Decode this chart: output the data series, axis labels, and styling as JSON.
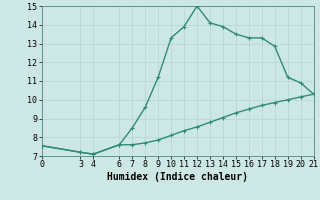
{
  "upper_x": [
    0,
    3,
    4,
    6,
    7,
    8,
    9,
    10,
    11,
    12,
    13,
    14,
    15,
    16,
    17,
    18,
    19,
    20,
    21
  ],
  "upper_y": [
    7.55,
    7.2,
    7.1,
    7.6,
    8.5,
    9.6,
    11.2,
    13.3,
    13.9,
    15.0,
    14.1,
    13.9,
    13.5,
    13.3,
    13.3,
    12.85,
    11.2,
    10.9,
    10.3
  ],
  "lower_x": [
    0,
    3,
    4,
    6,
    7,
    8,
    9,
    10,
    11,
    12,
    13,
    14,
    15,
    16,
    17,
    18,
    19,
    20,
    21
  ],
  "lower_y": [
    7.55,
    7.2,
    7.1,
    7.6,
    7.6,
    7.7,
    7.85,
    8.1,
    8.35,
    8.55,
    8.8,
    9.05,
    9.3,
    9.5,
    9.7,
    9.85,
    10.0,
    10.15,
    10.3
  ],
  "line_color": "#2e8b7a",
  "bg_color": "#cde8e4",
  "grid_color": "#b8d8d4",
  "xlabel": "Humidex (Indice chaleur)",
  "xlim": [
    0,
    21
  ],
  "ylim": [
    7,
    15
  ],
  "xticks": [
    0,
    3,
    4,
    6,
    7,
    8,
    9,
    10,
    11,
    12,
    13,
    14,
    15,
    16,
    17,
    18,
    19,
    20,
    21
  ],
  "yticks": [
    7,
    8,
    9,
    10,
    11,
    12,
    13,
    14,
    15
  ],
  "tick_fontsize": 6.0,
  "xlabel_fontsize": 7.0,
  "marker_size": 2.5,
  "line_width": 1.0
}
